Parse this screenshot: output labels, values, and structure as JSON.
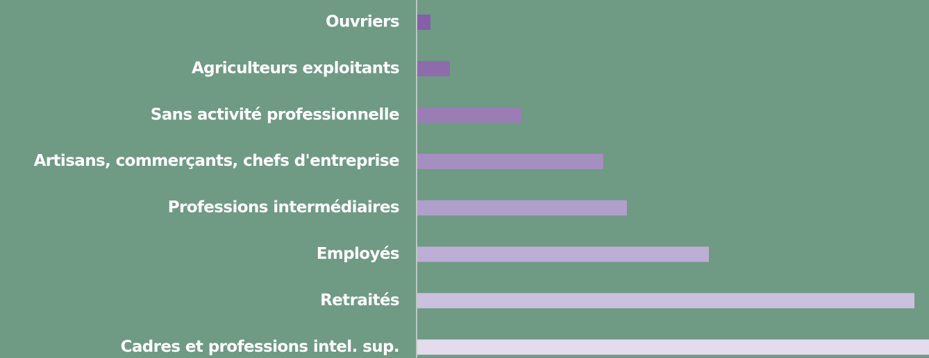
{
  "chart_data": {
    "type": "bar",
    "orientation": "horizontal",
    "categories": [
      "Ouvriers",
      "Agriculteurs exploitants",
      "Sans activité professionnelle",
      "Artisans, commerçants, chefs d'entreprise",
      "Professions intermédiaires",
      "Employés",
      "Retraités",
      "Cadres et professions intel. sup."
    ],
    "values": [
      19,
      47,
      150,
      268,
      302,
      420,
      716,
      760
    ],
    "colors": [
      "#8360a8",
      "#8e6cac",
      "#9a7db5",
      "#a58fc0",
      "#b09fcb",
      "#bcaed4",
      "#cbc0dd",
      "#e4dcec"
    ],
    "xlim": [
      0,
      737
    ]
  }
}
